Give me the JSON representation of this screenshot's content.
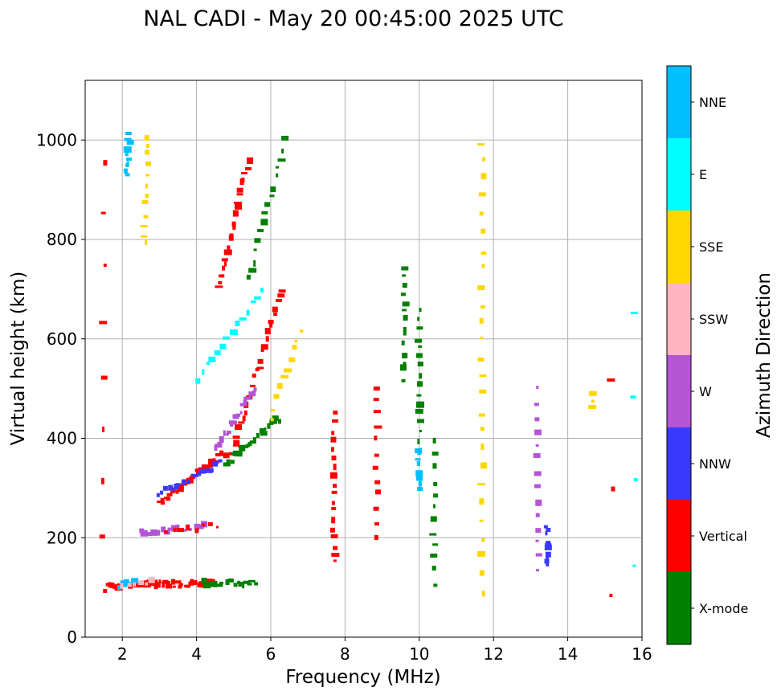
{
  "chart_data": {
    "type": "scatter",
    "title": "NAL CADI - May 20 00:45:00 2025 UTC",
    "xlabel": "Frequency (MHz)",
    "ylabel": "Virtual height (km)",
    "xlim": [
      1.0,
      16.0
    ],
    "ylim": [
      0,
      1120
    ],
    "xticks": [
      2,
      4,
      6,
      8,
      10,
      12,
      14,
      16
    ],
    "yticks": [
      0,
      200,
      400,
      600,
      800,
      1000
    ],
    "grid": true,
    "colorbar": {
      "label": "Azimuth Direction",
      "categories": [
        {
          "name": "X-mode",
          "color": "#008000"
        },
        {
          "name": "Vertical",
          "color": "#ff0000"
        },
        {
          "name": "NNW",
          "color": "#3a3aff"
        },
        {
          "name": "W",
          "color": "#b455d6"
        },
        {
          "name": "SSW",
          "color": "#ffb6c1"
        },
        {
          "name": "SSE",
          "color": "#ffd700"
        },
        {
          "name": "E",
          "color": "#00ffff"
        },
        {
          "name": "NNE",
          "color": "#00bfff"
        }
      ]
    },
    "traces": [
      {
        "category": "Vertical",
        "f_start": 1.6,
        "f_end": 4.4,
        "h_start": 105,
        "h_end": 108,
        "n": 44
      },
      {
        "category": "X-mode",
        "f_start": 4.2,
        "f_end": 5.6,
        "h_start": 108,
        "h_end": 110,
        "n": 18
      },
      {
        "category": "NNE",
        "f_start": 1.9,
        "f_end": 2.3,
        "h_start": 100,
        "h_end": 112,
        "n": 6
      },
      {
        "category": "SSW",
        "f_start": 2.0,
        "f_end": 2.8,
        "h_start": 102,
        "h_end": 110,
        "n": 6
      },
      {
        "category": "Vertical",
        "f_start": 3.0,
        "f_end": 4.0,
        "h_start": 268,
        "h_end": 330,
        "n": 18
      },
      {
        "category": "NNW",
        "f_start": 3.0,
        "f_end": 3.8,
        "h_start": 290,
        "h_end": 315,
        "n": 10
      },
      {
        "category": "Vertical",
        "f_start": 4.0,
        "f_end": 4.9,
        "h_start": 330,
        "h_end": 375,
        "n": 14
      },
      {
        "category": "NNW",
        "f_start": 3.9,
        "f_end": 4.6,
        "h_start": 320,
        "h_end": 350,
        "n": 8
      },
      {
        "category": "X-mode",
        "f_start": 4.8,
        "f_end": 6.2,
        "h_start": 350,
        "h_end": 440,
        "n": 22
      },
      {
        "category": "Vertical",
        "f_start": 5.0,
        "f_end": 6.3,
        "h_start": 380,
        "h_end": 700,
        "n": 26
      },
      {
        "category": "W",
        "f_start": 4.5,
        "f_end": 5.6,
        "h_start": 380,
        "h_end": 500,
        "n": 20
      },
      {
        "category": "Vertical",
        "f_start": 4.6,
        "f_end": 5.4,
        "h_start": 700,
        "h_end": 960,
        "n": 22
      },
      {
        "category": "X-mode",
        "f_start": 5.4,
        "f_end": 6.4,
        "h_start": 720,
        "h_end": 1000,
        "n": 16
      },
      {
        "category": "E",
        "f_start": 4.0,
        "f_end": 5.8,
        "h_start": 520,
        "h_end": 700,
        "n": 14
      },
      {
        "category": "SSE",
        "f_start": 6.0,
        "f_end": 6.8,
        "h_start": 440,
        "h_end": 620,
        "n": 10
      },
      {
        "category": "W",
        "f_start": 2.5,
        "f_end": 4.2,
        "h_start": 212,
        "h_end": 222,
        "n": 16
      },
      {
        "category": "Vertical",
        "f_start": 3.2,
        "f_end": 4.6,
        "h_start": 210,
        "h_end": 225,
        "n": 8
      },
      {
        "category": "NNE",
        "f_start": 2.1,
        "f_end": 2.2,
        "h_start": 930,
        "h_end": 1010,
        "n": 10
      },
      {
        "category": "SSE",
        "f_start": 2.6,
        "f_end": 2.7,
        "h_start": 790,
        "h_end": 1010,
        "n": 12
      },
      {
        "category": "Vertical",
        "f_start": 7.7,
        "f_end": 7.7,
        "h_start": 150,
        "h_end": 450,
        "n": 18
      },
      {
        "category": "Vertical",
        "f_start": 8.85,
        "f_end": 8.85,
        "h_start": 205,
        "h_end": 505,
        "n": 12
      },
      {
        "category": "X-mode",
        "f_start": 9.6,
        "f_end": 9.6,
        "h_start": 520,
        "h_end": 745,
        "n": 14
      },
      {
        "category": "X-mode",
        "f_start": 10.0,
        "f_end": 10.0,
        "h_start": 380,
        "h_end": 655,
        "n": 16
      },
      {
        "category": "NNE",
        "f_start": 10.0,
        "f_end": 10.0,
        "h_start": 300,
        "h_end": 380,
        "n": 8
      },
      {
        "category": "X-mode",
        "f_start": 10.4,
        "f_end": 10.4,
        "h_start": 110,
        "h_end": 390,
        "n": 12
      },
      {
        "category": "SSE",
        "f_start": 11.7,
        "f_end": 11.7,
        "h_start": 90,
        "h_end": 995,
        "n": 26
      },
      {
        "category": "W",
        "f_start": 13.2,
        "f_end": 13.2,
        "h_start": 135,
        "h_end": 500,
        "n": 14
      },
      {
        "category": "NNW",
        "f_start": 13.45,
        "f_end": 13.45,
        "h_start": 140,
        "h_end": 222,
        "n": 10
      },
      {
        "category": "SSE",
        "f_start": 14.7,
        "f_end": 14.7,
        "h_start": 460,
        "h_end": 490,
        "n": 3
      },
      {
        "category": "Vertical",
        "f_start": 15.2,
        "f_end": 15.2,
        "h_start": 90,
        "h_end": 515,
        "n": 3
      },
      {
        "category": "Vertical",
        "f_start": 1.5,
        "f_end": 1.5,
        "h_start": 95,
        "h_end": 960,
        "n": 9
      },
      {
        "category": "E",
        "f_start": 15.8,
        "f_end": 15.8,
        "h_start": 145,
        "h_end": 650,
        "n": 4
      }
    ]
  }
}
